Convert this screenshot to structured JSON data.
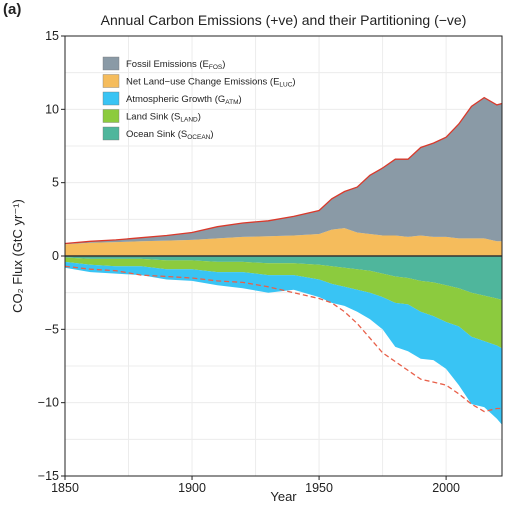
{
  "panel_label": "(a)",
  "chart_data": {
    "type": "area",
    "title": "Annual Carbon Emissions (+ve) and their Partitioning (−ve)",
    "xlabel": "Year",
    "ylabel": "CO₂ Flux (GtC yr⁻¹)",
    "xlim": [
      1850,
      2022
    ],
    "ylim": [
      -15,
      15
    ],
    "x_ticks": [
      1850,
      1900,
      1950,
      2000
    ],
    "y_ticks": [
      15,
      10,
      5,
      0,
      -5,
      -10,
      -15
    ],
    "y_tick_labels": [
      "15",
      "10",
      "5",
      "0",
      "−5",
      "−10",
      "−15"
    ],
    "grid": true,
    "legend_position": "top-left",
    "colors": {
      "fossil": "#8a9aa6",
      "luc": "#f5bc5c",
      "atm": "#39c4f4",
      "land": "#8ccb3e",
      "ocean": "#4fb69c",
      "total_line": "#d9392b",
      "budget_line": "#e8604a",
      "zero_line": "#333333"
    },
    "legend": [
      {
        "key": "fossil",
        "label": "Fossil Emissions (E",
        "sub": "FOS",
        "close": ")"
      },
      {
        "key": "luc",
        "label": "Net Land−use Change Emissions (E",
        "sub": "LUC",
        "close": ")"
      },
      {
        "key": "atm",
        "label": "Atmospheric Growth (G",
        "sub": "ATM",
        "close": ")"
      },
      {
        "key": "land",
        "label": "Land Sink (S",
        "sub": "LAND",
        "close": ")"
      },
      {
        "key": "ocean",
        "label": "Ocean Sink (S",
        "sub": "OCEAN",
        "close": ")"
      }
    ],
    "x": [
      1850,
      1860,
      1870,
      1880,
      1890,
      1900,
      1910,
      1920,
      1930,
      1940,
      1950,
      1955,
      1960,
      1965,
      1970,
      1975,
      1980,
      1985,
      1990,
      1995,
      2000,
      2005,
      2010,
      2015,
      2020,
      2022
    ],
    "series": [
      {
        "name": "Fossil Emissions (EFOS)",
        "key": "fossil",
        "values": [
          0.05,
          0.1,
          0.15,
          0.25,
          0.35,
          0.5,
          0.8,
          0.95,
          1.05,
          1.3,
          1.6,
          2.1,
          2.5,
          3.1,
          4.0,
          4.6,
          5.2,
          5.3,
          6.0,
          6.4,
          6.8,
          7.8,
          9.0,
          9.6,
          9.3,
          9.4
        ]
      },
      {
        "name": "Net Land-use Change Emissions (ELUC)",
        "key": "luc",
        "values": [
          0.8,
          0.9,
          0.95,
          1.0,
          1.05,
          1.1,
          1.2,
          1.3,
          1.35,
          1.4,
          1.5,
          1.8,
          1.9,
          1.6,
          1.5,
          1.4,
          1.4,
          1.3,
          1.4,
          1.3,
          1.3,
          1.2,
          1.2,
          1.2,
          1.0,
          1.0
        ]
      },
      {
        "name": "Atmospheric Growth (GATM)",
        "key": "atm",
        "values": [
          -0.4,
          -0.5,
          -0.5,
          -0.6,
          -0.7,
          -0.8,
          -0.9,
          -1.1,
          -1.2,
          -1.0,
          -1.2,
          -1.3,
          -1.3,
          -1.5,
          -1.8,
          -2.2,
          -3.0,
          -3.2,
          -3.2,
          -3.0,
          -3.2,
          -4.0,
          -4.6,
          -4.5,
          -5.0,
          -5.2
        ]
      },
      {
        "name": "Land Sink (SLAND)",
        "key": "land",
        "values": [
          -0.3,
          -0.4,
          -0.5,
          -0.5,
          -0.6,
          -0.6,
          -0.7,
          -0.7,
          -0.8,
          -0.8,
          -1.0,
          -1.2,
          -1.3,
          -1.4,
          -1.5,
          -1.6,
          -1.8,
          -1.8,
          -2.1,
          -2.3,
          -2.5,
          -2.6,
          -3.0,
          -3.1,
          -3.2,
          -3.3
        ]
      },
      {
        "name": "Ocean Sink (SOCEAN)",
        "key": "ocean",
        "values": [
          -0.1,
          -0.2,
          -0.2,
          -0.2,
          -0.3,
          -0.3,
          -0.4,
          -0.4,
          -0.5,
          -0.5,
          -0.6,
          -0.7,
          -0.8,
          -0.9,
          -1.0,
          -1.2,
          -1.4,
          -1.5,
          -1.7,
          -1.8,
          -2.0,
          -2.2,
          -2.5,
          -2.7,
          -2.9,
          -3.0
        ]
      }
    ],
    "budget_line": {
      "name": "Sum of partitioning",
      "key": "budget_line",
      "values": [
        -0.7,
        -0.9,
        -1.0,
        -1.3,
        -1.4,
        -1.5,
        -1.7,
        -1.8,
        -2.1,
        -2.5,
        -2.9,
        -3.2,
        -3.8,
        -4.6,
        -5.6,
        -6.6,
        -7.2,
        -7.8,
        -8.4,
        -8.6,
        -8.8,
        -9.4,
        -10.1,
        -10.6,
        -10.4,
        -10.4
      ]
    }
  }
}
